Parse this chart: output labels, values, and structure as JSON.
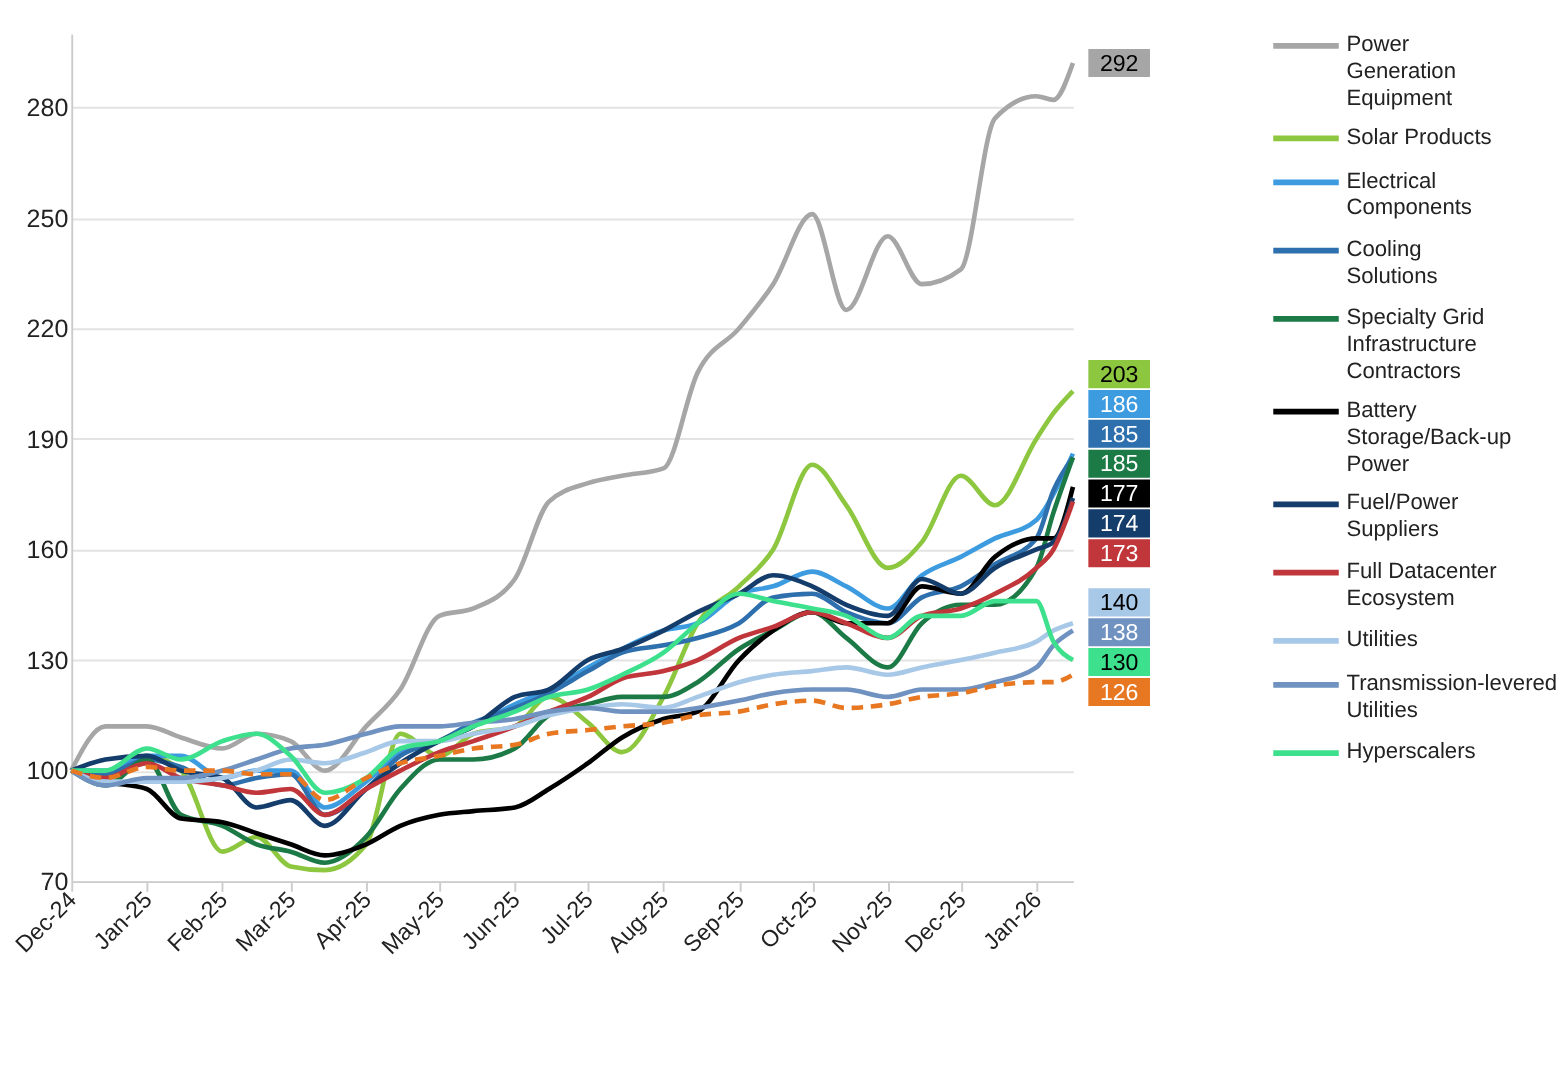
{
  "chart_data": {
    "type": "line",
    "x": [
      "2024-12-01",
      "2024-12-15",
      "2025-01-01",
      "2025-01-15",
      "2025-02-01",
      "2025-02-15",
      "2025-03-01",
      "2025-03-15",
      "2025-04-01",
      "2025-04-15",
      "2025-05-01",
      "2025-05-15",
      "2025-06-01",
      "2025-06-15",
      "2025-07-01",
      "2025-07-15",
      "2025-08-01",
      "2025-08-15",
      "2025-09-01",
      "2025-09-15",
      "2025-10-01",
      "2025-10-15",
      "2025-11-01",
      "2025-11-15",
      "2025-12-01",
      "2025-12-15",
      "2026-01-01",
      "2026-01-08",
      "2026-01-16"
    ],
    "xlim": [
      "2024-12-01",
      "2026-01-16"
    ],
    "xticks": [
      {
        "value": "2024-12-01",
        "label": "Dec-24"
      },
      {
        "value": "2025-01-01",
        "label": "Jan-25"
      },
      {
        "value": "2025-02-01",
        "label": "Feb-25"
      },
      {
        "value": "2025-03-01",
        "label": "Mar-25"
      },
      {
        "value": "2025-04-01",
        "label": "Apr-25"
      },
      {
        "value": "2025-05-01",
        "label": "May-25"
      },
      {
        "value": "2025-06-01",
        "label": "Jun-25"
      },
      {
        "value": "2025-07-01",
        "label": "Jul-25"
      },
      {
        "value": "2025-08-01",
        "label": "Aug-25"
      },
      {
        "value": "2025-09-01",
        "label": "Sep-25"
      },
      {
        "value": "2025-10-01",
        "label": "Oct-25"
      },
      {
        "value": "2025-11-01",
        "label": "Nov-25"
      },
      {
        "value": "2025-12-01",
        "label": "Dec-25"
      },
      {
        "value": "2026-01-01",
        "label": "Jan-26"
      }
    ],
    "ylim": [
      70,
      300
    ],
    "yticks": [
      70,
      100,
      130,
      160,
      190,
      220,
      250,
      280
    ],
    "grid": "y",
    "legend": "right",
    "marker": "none",
    "line_style": "solid",
    "series": [
      {
        "name": "Power Generation Equipment",
        "color": "#a6a6a6",
        "values": [
          100,
          112,
          112,
          109,
          106,
          110,
          108,
          100,
          112,
          122,
          142,
          144,
          152,
          173,
          178,
          180,
          182,
          208,
          220,
          232,
          251,
          225,
          245,
          232,
          236,
          277,
          283,
          282,
          292
        ],
        "value_labels": [
          null,
          null,
          null,
          null,
          null,
          null,
          null,
          null,
          null,
          null,
          null,
          null,
          null,
          null,
          null,
          null,
          null,
          null,
          null,
          null,
          null,
          null,
          null,
          null,
          null,
          null,
          null,
          null,
          "292"
        ]
      },
      {
        "name": "Solar Products",
        "color": "#8dc63f",
        "values": [
          100,
          97,
          104,
          100,
          78,
          82,
          74,
          73,
          80,
          110,
          104,
          110,
          112,
          120,
          113,
          105,
          120,
          140,
          150,
          160,
          183,
          172,
          155,
          162,
          180,
          172,
          190,
          197,
          203
        ],
        "value_labels": [
          null,
          null,
          null,
          null,
          null,
          null,
          null,
          null,
          null,
          null,
          null,
          null,
          null,
          null,
          null,
          null,
          null,
          null,
          null,
          null,
          null,
          null,
          null,
          null,
          null,
          null,
          null,
          null,
          "203"
        ]
      },
      {
        "name": "Electrical Components",
        "color": "#3d9be0",
        "values": [
          100,
          100,
          104,
          104,
          98,
          100,
          100,
          90,
          97,
          105,
          108,
          112,
          118,
          122,
          128,
          133,
          138,
          140,
          148,
          150,
          154,
          150,
          144,
          153,
          158,
          163,
          168,
          175,
          186
        ],
        "value_labels": [
          null,
          null,
          null,
          null,
          null,
          null,
          null,
          null,
          null,
          null,
          null,
          null,
          null,
          null,
          null,
          null,
          null,
          null,
          null,
          null,
          null,
          null,
          null,
          null,
          null,
          null,
          null,
          null,
          "186"
        ]
      },
      {
        "name": "Cooling Solutions",
        "color": "#2e6fad",
        "values": [
          100,
          99,
          103,
          101,
          96,
          98,
          99,
          88,
          95,
          104,
          108,
          113,
          117,
          121,
          127,
          132,
          134,
          136,
          140,
          147,
          148,
          143,
          140,
          147,
          150,
          156,
          163,
          176,
          185
        ],
        "value_labels": [
          null,
          null,
          null,
          null,
          null,
          null,
          null,
          null,
          null,
          null,
          null,
          null,
          null,
          null,
          null,
          null,
          null,
          null,
          null,
          null,
          null,
          null,
          null,
          null,
          null,
          null,
          null,
          null,
          "185"
        ]
      },
      {
        "name": "Specialty Grid Infrastructure Contractors",
        "color": "#1b7a45",
        "values": [
          100,
          96,
          103,
          88,
          85,
          80,
          78,
          75,
          82,
          95,
          103,
          103,
          106,
          115,
          118,
          120,
          120,
          124,
          133,
          138,
          143,
          136,
          128,
          140,
          145,
          145,
          155,
          170,
          185
        ],
        "value_labels": [
          null,
          null,
          null,
          null,
          null,
          null,
          null,
          null,
          null,
          null,
          null,
          null,
          null,
          null,
          null,
          null,
          null,
          null,
          null,
          null,
          null,
          null,
          null,
          null,
          null,
          null,
          null,
          null,
          "185"
        ]
      },
      {
        "name": "Battery Storage/Back-up Power",
        "color": "#000000",
        "values": [
          100,
          97,
          95,
          87,
          86,
          83,
          80,
          77,
          80,
          85,
          88,
          89,
          90,
          95,
          102,
          109,
          114,
          116,
          130,
          138,
          143,
          140,
          140,
          150,
          148,
          158,
          163,
          163,
          177
        ],
        "value_labels": [
          null,
          null,
          null,
          null,
          null,
          null,
          null,
          null,
          null,
          null,
          null,
          null,
          null,
          null,
          null,
          null,
          null,
          null,
          null,
          null,
          null,
          null,
          null,
          null,
          null,
          null,
          null,
          null,
          "177"
        ]
      },
      {
        "name": "Fuel/Power Suppliers",
        "color": "#143d6b",
        "values": [
          100,
          103,
          104,
          100,
          98,
          90,
          92,
          85,
          95,
          102,
          108,
          112,
          120,
          122,
          130,
          133,
          138,
          143,
          148,
          153,
          150,
          145,
          142,
          152,
          148,
          155,
          160,
          162,
          174
        ],
        "value_labels": [
          null,
          null,
          null,
          null,
          null,
          null,
          null,
          null,
          null,
          null,
          null,
          null,
          null,
          null,
          null,
          null,
          null,
          null,
          null,
          null,
          null,
          null,
          null,
          null,
          null,
          null,
          null,
          null,
          "174"
        ]
      },
      {
        "name": "Full Datacenter Ecosystem",
        "color": "#c0363a",
        "values": [
          100,
          98,
          102,
          98,
          96,
          94,
          95,
          88,
          95,
          100,
          105,
          108,
          112,
          116,
          120,
          125,
          127,
          130,
          136,
          139,
          143,
          140,
          136,
          142,
          144,
          148,
          155,
          160,
          173
        ],
        "value_labels": [
          null,
          null,
          null,
          null,
          null,
          null,
          null,
          null,
          null,
          null,
          null,
          null,
          null,
          null,
          null,
          null,
          null,
          null,
          null,
          null,
          null,
          null,
          null,
          null,
          null,
          null,
          null,
          null,
          "173"
        ]
      },
      {
        "name": "Utilities",
        "color": "#a8c8e8",
        "values": [
          100,
          97,
          97,
          97,
          98,
          100,
          103,
          102,
          105,
          108,
          108,
          110,
          112,
          115,
          117,
          118,
          117,
          120,
          124,
          126,
          127,
          128,
          126,
          128,
          130,
          132,
          135,
          138,
          140
        ],
        "value_labels": [
          null,
          null,
          null,
          null,
          null,
          null,
          null,
          null,
          null,
          null,
          null,
          null,
          null,
          null,
          null,
          null,
          null,
          null,
          null,
          null,
          null,
          null,
          null,
          null,
          null,
          null,
          null,
          null,
          "140"
        ]
      },
      {
        "name": "Transmission-levered Utilities",
        "color": "#6f92c0",
        "values": [
          100,
          96,
          98,
          98,
          100,
          103,
          106,
          107,
          110,
          112,
          112,
          113,
          114,
          116,
          117,
          116,
          116,
          117,
          119,
          121,
          122,
          122,
          120,
          122,
          122,
          124,
          128,
          134,
          138
        ],
        "value_labels": [
          null,
          null,
          null,
          null,
          null,
          null,
          null,
          null,
          null,
          null,
          null,
          null,
          null,
          null,
          null,
          null,
          null,
          null,
          null,
          null,
          null,
          null,
          null,
          null,
          null,
          null,
          null,
          null,
          "138"
        ]
      },
      {
        "name": "Hyperscalers",
        "color": "#3de08c",
        "values": [
          100,
          100,
          106,
          103,
          108,
          110,
          104,
          94,
          98,
          106,
          108,
          112,
          116,
          120,
          122,
          126,
          132,
          140,
          148,
          146,
          144,
          142,
          136,
          142,
          142,
          146,
          146,
          135,
          130
        ],
        "value_labels": [
          null,
          null,
          null,
          null,
          null,
          null,
          null,
          null,
          null,
          null,
          null,
          null,
          null,
          null,
          null,
          null,
          null,
          null,
          null,
          null,
          null,
          null,
          null,
          null,
          null,
          null,
          null,
          null,
          "130"
        ]
      },
      {
        "color": "#e87722",
        "line_style": "dashed",
        "values": [
          100,
          98,
          101,
          100,
          100,
          99,
          99,
          92,
          98,
          102,
          104,
          106,
          107,
          110,
          111,
          112,
          113,
          115,
          116,
          118,
          119,
          117,
          118,
          120,
          121,
          123,
          124,
          124,
          126
        ],
        "value_labels": [
          null,
          null,
          null,
          null,
          null,
          null,
          null,
          null,
          null,
          null,
          null,
          null,
          null,
          null,
          null,
          null,
          null,
          null,
          null,
          null,
          null,
          null,
          null,
          null,
          null,
          null,
          null,
          null,
          "126"
        ]
      }
    ]
  }
}
